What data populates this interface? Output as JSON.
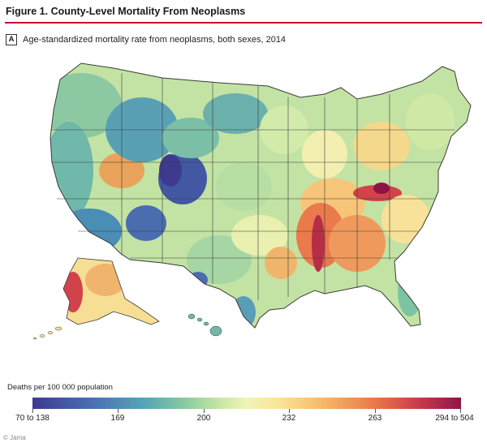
{
  "figure": {
    "title": "Figure 1. County-Level Mortality From Neoplasms",
    "panel_letter": "A",
    "panel_caption": "Age-standardized mortality rate from neoplasms, both sexes, 2014"
  },
  "legend": {
    "title": "Deaths per 100 000 population",
    "ticks": [
      "70 to 138",
      "169",
      "200",
      "232",
      "263",
      "294 to 504"
    ]
  },
  "credit": "© Jama",
  "colors": {
    "low": "#3d3a8f",
    "mid": "#f0f4b8",
    "high": "#8e1447",
    "title_rule": "#c8102e"
  }
}
